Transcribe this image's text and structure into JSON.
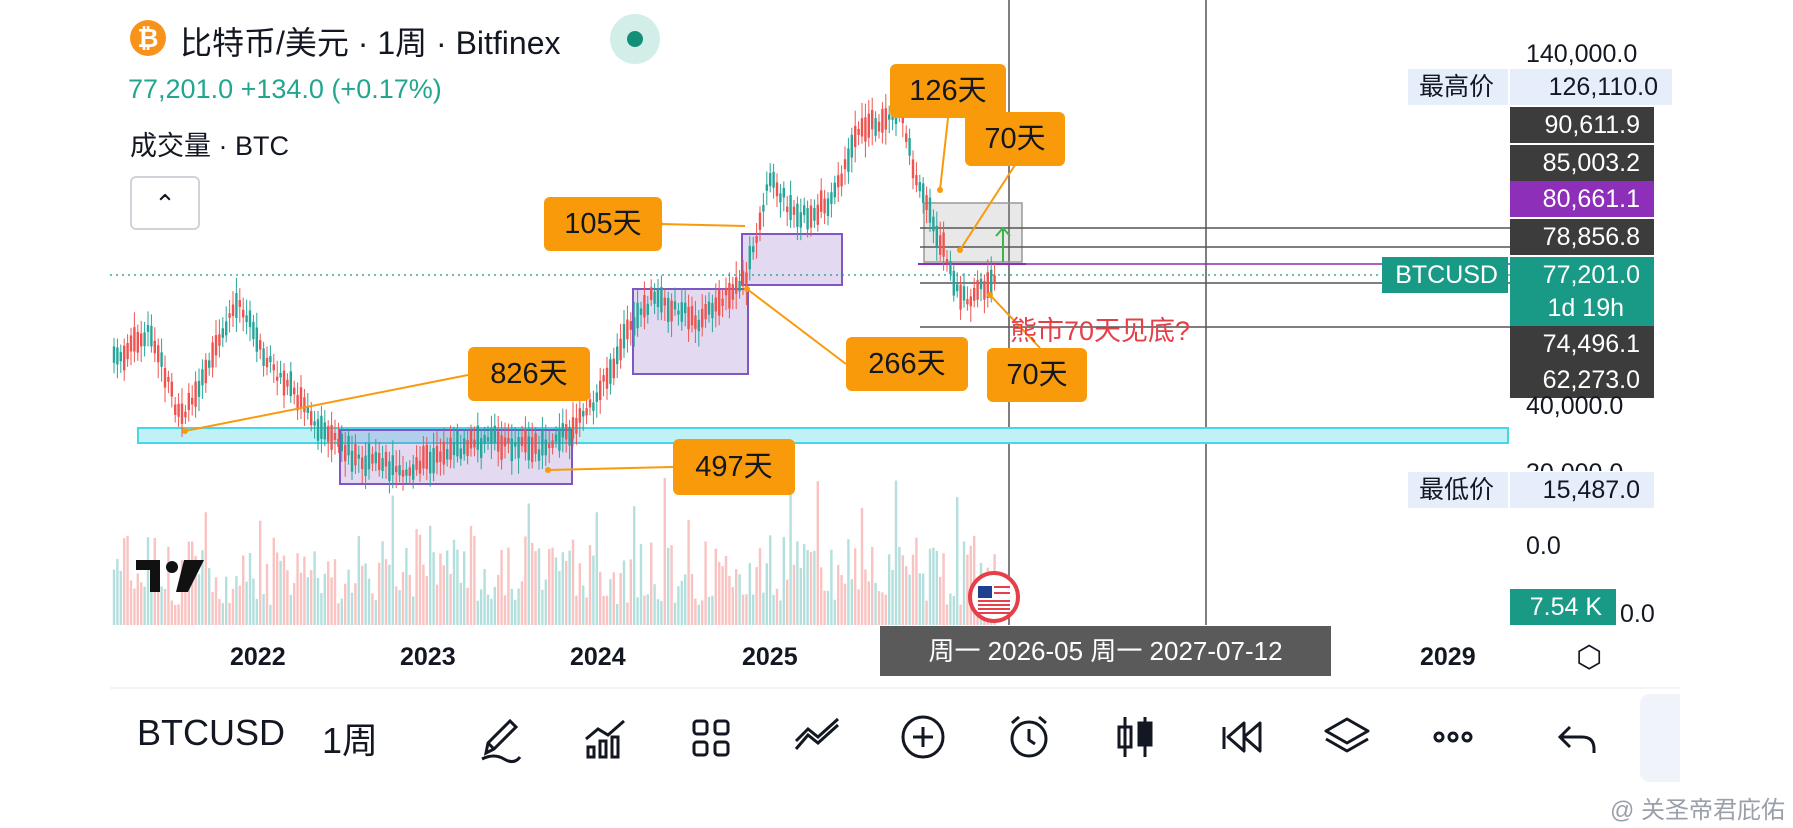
{
  "header": {
    "coin_icon": "bitcoin-icon",
    "coin_glyph": "₿",
    "title": "比特币/美元 · 1周 · Bitfinex",
    "price_change": "77,201.0  +134.0 (+0.17%)",
    "volume_label": "成交量 · BTC",
    "collapse_glyph": "⌃"
  },
  "annotations": {
    "d126": "126天",
    "d70a": "70天",
    "d105": "105天",
    "d266": "266天",
    "d826": "826天",
    "d70b": "70天",
    "d497": "497天",
    "bear_note": "熊市70天见底?"
  },
  "price_axis": {
    "ticks": [
      "140,000.0",
      "40,000.0",
      "30,000.0",
      "0.0",
      "0.0"
    ],
    "high_label": "最高价",
    "high_value": "126,110.0",
    "low_label": "最低价",
    "low_value": "15,487.0",
    "levels": [
      "90,611.9",
      "85,003.2",
      "80,661.1",
      "78,856.8",
      "74,496.1",
      "62,273.0"
    ],
    "symbol_tag": "BTCUSD",
    "current_price": "77,201.0",
    "countdown": "1d 19h",
    "volume_value": "7.54 K"
  },
  "time_axis": {
    "years": [
      "2022",
      "2023",
      "2024",
      "2025",
      "2029"
    ],
    "crosshair_range": "周一 2026-05   周一 2027-07-12"
  },
  "toolbar": {
    "symbol": "BTCUSD",
    "interval": "1周",
    "icons": [
      "pen-icon",
      "indicators-icon",
      "layout-grid-icon",
      "compare-icon",
      "add-icon",
      "alarm-icon",
      "candles-icon",
      "replay-icon",
      "layers-icon",
      "more-icon",
      "undo-icon"
    ]
  },
  "colors": {
    "up": "#26a69a",
    "down": "#ef5350",
    "annotation": "#f99a0a",
    "purple_box": "#7e57c2",
    "cyan_band": "#46d6e8",
    "current_green": "#189a86"
  },
  "watermark": "@ 关圣帝君庇佑"
}
